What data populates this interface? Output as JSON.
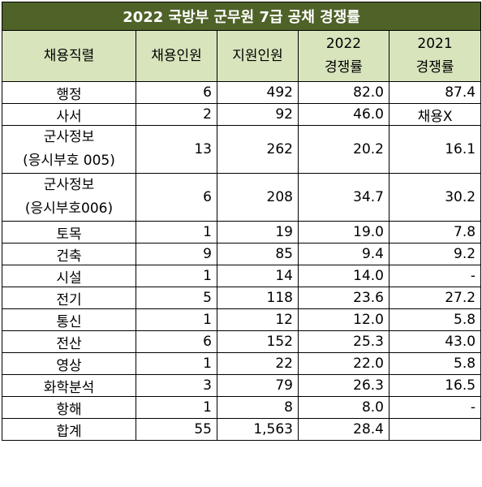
{
  "title": "2022 국방부 군무원 7급 공채  경쟁률",
  "headers": {
    "job": "채용직렬",
    "hires": "채용인원",
    "applicants": "지원인원",
    "y2022_year": "2022",
    "y2022_label": "경쟁률",
    "y2021_year": "2021",
    "y2021_label": "경쟁률"
  },
  "rows": [
    {
      "job": "행정",
      "hires": "6",
      "applicants": "492",
      "rate2022": "82.0",
      "rate2021": "87.4"
    },
    {
      "job": "사서",
      "hires": "2",
      "applicants": "92",
      "rate2022": "46.0",
      "rate2021": "채용X"
    },
    {
      "job_line1": "군사정보",
      "job_line2": "(응시부호 005)",
      "hires": "13",
      "applicants": "262",
      "rate2022": "20.2",
      "rate2021": "16.1"
    },
    {
      "job_line1": "군사정보",
      "job_line2": "(응시부호006)",
      "hires": "6",
      "applicants": "208",
      "rate2022": "34.7",
      "rate2021": "30.2"
    },
    {
      "job": "토목",
      "hires": "1",
      "applicants": "19",
      "rate2022": "19.0",
      "rate2021": "7.8"
    },
    {
      "job": "건축",
      "hires": "9",
      "applicants": "85",
      "rate2022": "9.4",
      "rate2021": "9.2"
    },
    {
      "job": "시설",
      "hires": "1",
      "applicants": "14",
      "rate2022": "14.0",
      "rate2021": "-"
    },
    {
      "job": "전기",
      "hires": "5",
      "applicants": "118",
      "rate2022": "23.6",
      "rate2021": "27.2"
    },
    {
      "job": "통신",
      "hires": "1",
      "applicants": "12",
      "rate2022": "12.0",
      "rate2021": "5.8"
    },
    {
      "job": "전산",
      "hires": "6",
      "applicants": "152",
      "rate2022": "25.3",
      "rate2021": "43.0"
    },
    {
      "job": "영상",
      "hires": "1",
      "applicants": "22",
      "rate2022": "22.0",
      "rate2021": "5.8"
    },
    {
      "job": "화학분석",
      "hires": "3",
      "applicants": "79",
      "rate2022": "26.3",
      "rate2021": "16.5"
    },
    {
      "job": "항해",
      "hires": "1",
      "applicants": "8",
      "rate2022": "8.0",
      "rate2021": "-"
    }
  ],
  "total": {
    "job": "합계",
    "hires": "55",
    "applicants": "1,563",
    "rate2022": "28.4",
    "rate2021": ""
  }
}
